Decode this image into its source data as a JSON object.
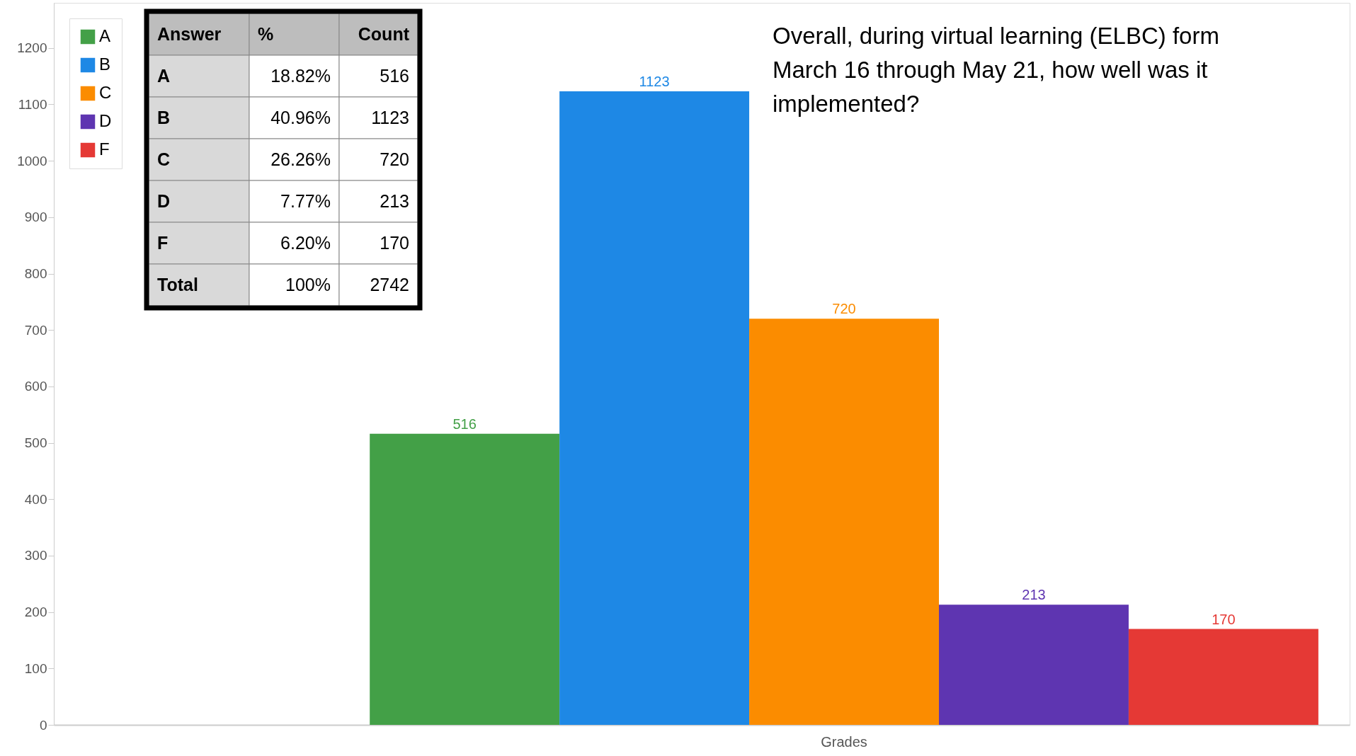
{
  "chart_data": {
    "type": "bar",
    "title": "Overall, during virtual learning (ELBC) form March 16 through May 21, how well was it implemented?",
    "categories": [
      "Grades"
    ],
    "series": [
      {
        "name": "A",
        "color": "#43a047",
        "values": [
          516
        ]
      },
      {
        "name": "B",
        "color": "#1e88e5",
        "values": [
          1123
        ]
      },
      {
        "name": "C",
        "color": "#fb8c00",
        "values": [
          720
        ]
      },
      {
        "name": "D",
        "color": "#5e35b1",
        "values": [
          213
        ]
      },
      {
        "name": "F",
        "color": "#e53935",
        "values": [
          170
        ]
      }
    ],
    "ylim": [
      0,
      1280
    ],
    "yticks": [
      0,
      100,
      200,
      300,
      400,
      500,
      600,
      700,
      800,
      900,
      1000,
      1100,
      1200
    ],
    "data_labels": true,
    "legend": "top left",
    "annotations": [
      "Answer",
      "%",
      "Count",
      "A",
      "18.82%",
      "516",
      "B",
      "40.96%",
      "1123",
      "C",
      "26.26%",
      "720",
      "D",
      "7.77%",
      "213",
      "F",
      "6.20%",
      "170",
      "Total",
      "100%",
      "2742"
    ]
  }
}
